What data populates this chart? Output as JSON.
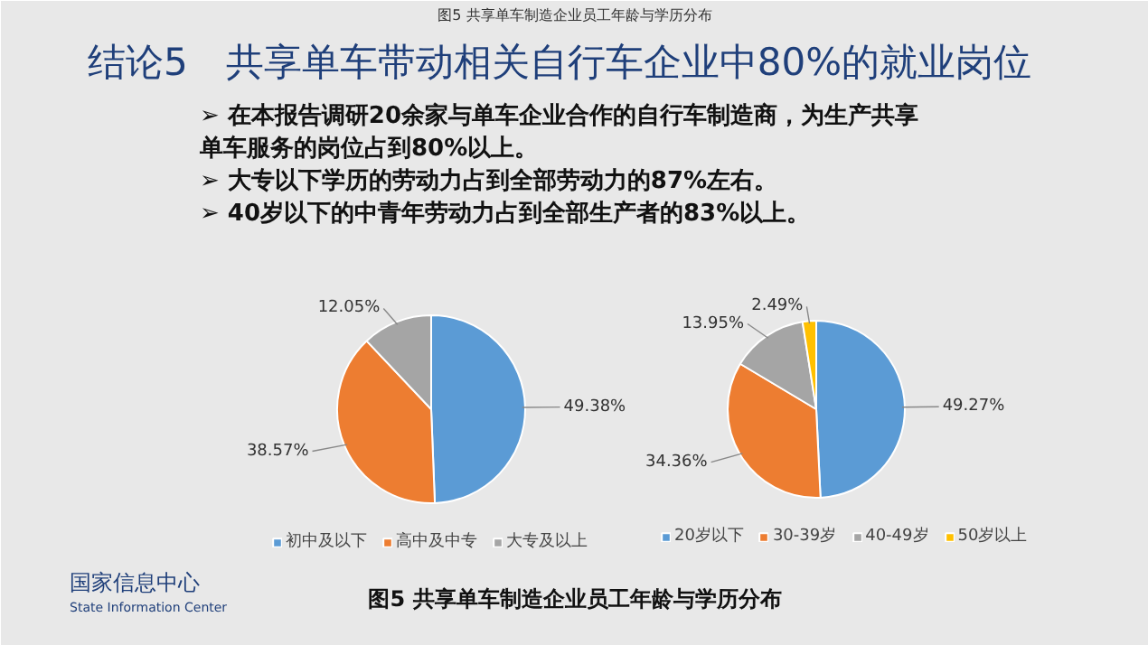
{
  "chart_data": [
    {
      "type": "pie",
      "title": "结论5　共享单车带动相关自行车企业中80%的就业岗位",
      "annotations": [
        "图5 共享单车制造企业员工年龄与学历分布",
        "➢ 在本报告调研20余家与单车企业合作的自行车制造商，为生产共享单车服务的岗位占到80%以上。",
        "➢ 大专以下学历的劳动力占到全部劳动力的87%左右。",
        "➢ 40岁以下的中青年劳动力占到全部生产者的83%以上。",
        "图5 共享单车制造企业员工年龄与学历分布",
        "国家信息中心",
        "State Information Center"
      ],
      "categories": [
        "初中及以下",
        "高中及中专",
        "大专及以上"
      ],
      "values": [
        49.38,
        38.57,
        12.05
      ],
      "value_labels": [
        "49.38%",
        "38.57%",
        "12.05%"
      ],
      "colors": [
        "#5b9bd5",
        "#ed7d31",
        "#a5a5a5"
      ],
      "legend": "bottom"
    },
    {
      "type": "pie",
      "categories": [
        "20岁以下",
        "30-39岁",
        "40-49岁",
        "50岁以上"
      ],
      "values": [
        49.27,
        34.36,
        13.95,
        2.49
      ],
      "value_labels": [
        "49.27%",
        "34.36%",
        "13.95%",
        "2.49%"
      ],
      "colors": [
        "#5b9bd5",
        "#ed7d31",
        "#a5a5a5",
        "#ffc000"
      ],
      "legend": "bottom"
    }
  ]
}
